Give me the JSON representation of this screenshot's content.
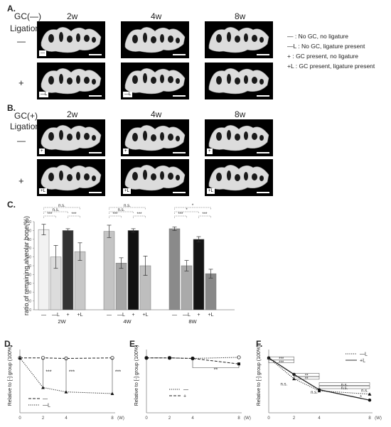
{
  "panelA": {
    "letter": "A.",
    "group": "GC(—)",
    "ligation": "Ligation",
    "rowMinus": "—",
    "rowPlus": "+",
    "weeks": [
      "2w",
      "4w",
      "8w"
    ],
    "tagMinus": "—",
    "tagMinusL": "—L"
  },
  "panelB": {
    "letter": "B.",
    "group": "GC(+)",
    "ligation": "Ligation",
    "rowMinus": "—",
    "rowPlus": "+",
    "weeks": [
      "2w",
      "4w",
      "8w"
    ],
    "tagPlus": "+",
    "tagPlusL": "+L"
  },
  "legend": [
    {
      "sym": "—",
      "text": ": No GC, no ligature"
    },
    {
      "sym": "—L",
      "text": ": No GC, ligature present"
    },
    {
      "sym": "+",
      "text": ": GC present, no ligature"
    },
    {
      "sym": "+L",
      "text": ": GC present, ligature present"
    }
  ],
  "panelC": {
    "letter": "C."
  },
  "panelD": {
    "letter": "D."
  },
  "panelE": {
    "letter": "E."
  },
  "panelF": {
    "letter": "F."
  },
  "chart_data": [
    {
      "id": "C",
      "type": "bar",
      "ylabel": "ratio of remaining alveolar bone(%)",
      "ylim": [
        0,
        100
      ],
      "yticks": [
        0,
        10,
        20,
        30,
        40,
        50,
        60,
        70,
        80,
        90,
        100
      ],
      "groups": [
        "2W",
        "4W",
        "8W"
      ],
      "bar_labels": [
        "—",
        "—L",
        "+",
        "+L"
      ],
      "values": [
        [
          91,
          60,
          90,
          66
        ],
        [
          89,
          53,
          90,
          50
        ],
        [
          92,
          50,
          80,
          41
        ]
      ],
      "errors": [
        [
          6,
          13,
          2,
          10
        ],
        [
          7,
          6,
          2,
          11
        ],
        [
          2,
          6,
          3,
          5
        ]
      ],
      "colors": [
        [
          "#f2f2f2",
          "#dcdcdc",
          "#333333",
          "#c8c8c8"
        ],
        [
          "#c4c4c4",
          "#a6a6a6",
          "#111111",
          "#bebebe"
        ],
        [
          "#8a8a8a",
          "#aaaaaa",
          "#151515",
          "#888888"
        ]
      ],
      "significance": [
        [
          "***",
          "n.s.",
          "***",
          "n.s."
        ],
        [
          "***",
          "n.s.",
          "***",
          "n.s."
        ],
        [
          "***",
          "*",
          "***",
          "*"
        ]
      ]
    },
    {
      "id": "D",
      "type": "line",
      "ylabel": "Relative to [-] group (100%)",
      "x": [
        0,
        2,
        4,
        8
      ],
      "xunit": "(W)",
      "series": [
        {
          "name": "—",
          "values": [
            100,
            100,
            99,
            100
          ],
          "marker": "open-circle",
          "dash": "dashed"
        },
        {
          "name": "—L",
          "values": [
            100,
            46,
            38,
            35
          ],
          "marker": "triangle",
          "dash": "dotted"
        }
      ],
      "annotations": [
        "***",
        "***",
        "***"
      ]
    },
    {
      "id": "E",
      "type": "line",
      "ylabel": "Relative to [-] group (100%)",
      "x": [
        0,
        2,
        4,
        8
      ],
      "xunit": "(W)",
      "series": [
        {
          "name": "—",
          "values": [
            100,
            100,
            99,
            101
          ],
          "marker": "open-circle",
          "dash": "dotted"
        },
        {
          "name": "+",
          "values": [
            100,
            100,
            99,
            89
          ],
          "marker": "filled-square",
          "dash": "dashed"
        }
      ],
      "annotations": [
        "**"
      ]
    },
    {
      "id": "F",
      "type": "line",
      "ylabel": "Relative to [-] group (100%)",
      "x": [
        0,
        2,
        4,
        8
      ],
      "xunit": "(W)",
      "series": [
        {
          "name": "—L",
          "values": [
            100,
            62,
            40,
            34
          ],
          "marker": "triangle",
          "dash": "dotted"
        },
        {
          "name": "+L",
          "values": [
            100,
            70,
            42,
            23
          ],
          "marker": "filled-circle",
          "dash": "solid"
        }
      ],
      "annotations": [
        "***",
        "***",
        "**",
        "**",
        "n.s.",
        "n.s.",
        "n.s.",
        "n.s.",
        "n.s.",
        "*"
      ]
    }
  ]
}
